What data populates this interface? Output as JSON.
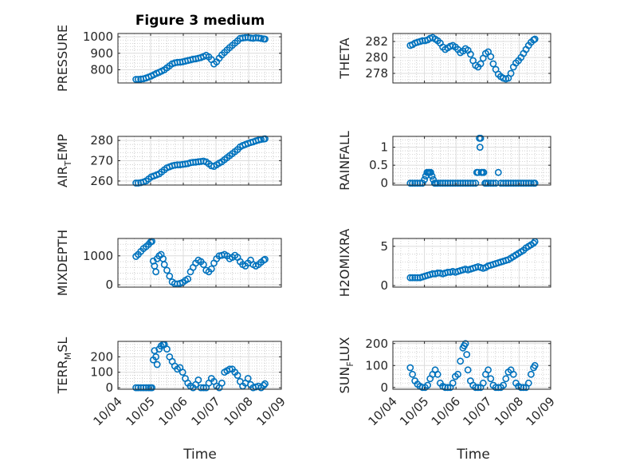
{
  "figure": {
    "title": "Figure 3 medium"
  },
  "chart_data": [
    {
      "type": "scatter",
      "id": "pressure",
      "ylabel": "PRESSURE",
      "ylabel_sub": null,
      "ylim": [
        720,
        1020
      ],
      "yticks": [
        800,
        900,
        1000
      ],
      "xlim": [
        0,
        5
      ],
      "x": [
        0.55,
        0.62,
        0.7,
        0.78,
        0.86,
        0.94,
        1.02,
        1.1,
        1.18,
        1.26,
        1.34,
        1.42,
        1.5,
        1.58,
        1.66,
        1.74,
        1.82,
        1.9,
        1.98,
        2.06,
        2.14,
        2.22,
        2.3,
        2.38,
        2.46,
        2.54,
        2.62,
        2.7,
        2.78,
        2.86,
        2.94,
        3.02,
        3.1,
        3.18,
        3.26,
        3.34,
        3.42,
        3.5,
        3.58,
        3.66,
        3.74,
        3.82,
        3.9,
        3.98,
        4.06,
        4.14,
        4.22,
        4.3,
        4.38,
        4.46,
        4.5
      ],
      "values": [
        742,
        742,
        743,
        745,
        750,
        756,
        762,
        770,
        778,
        785,
        792,
        800,
        812,
        824,
        836,
        842,
        845,
        846,
        848,
        852,
        856,
        860,
        864,
        866,
        870,
        874,
        880,
        888,
        878,
        862,
        835,
        848,
        870,
        890,
        905,
        920,
        935,
        948,
        962,
        975,
        990,
        993,
        995,
        996,
        993,
        991,
        994,
        993,
        990,
        987,
        986
      ]
    },
    {
      "type": "scatter",
      "id": "theta",
      "ylabel": "THETA",
      "ylabel_sub": null,
      "ylim": [
        276.8,
        283.0
      ],
      "yticks": [
        278,
        280,
        282
      ],
      "xlim": [
        0,
        5
      ],
      "x": [
        0.55,
        0.62,
        0.7,
        0.78,
        0.86,
        0.94,
        1.02,
        1.1,
        1.18,
        1.26,
        1.34,
        1.42,
        1.5,
        1.58,
        1.66,
        1.74,
        1.82,
        1.9,
        1.98,
        2.06,
        2.14,
        2.22,
        2.3,
        2.38,
        2.46,
        2.54,
        2.62,
        2.7,
        2.78,
        2.86,
        2.94,
        3.02,
        3.1,
        3.18,
        3.26,
        3.34,
        3.42,
        3.5,
        3.58,
        3.66,
        3.74,
        3.82,
        3.9,
        3.98,
        4.06,
        4.14,
        4.22,
        4.3,
        4.38,
        4.46,
        4.5
      ],
      "values": [
        281.5,
        281.6,
        281.8,
        281.9,
        282.0,
        282.1,
        282.1,
        282.2,
        282.4,
        282.5,
        282.3,
        282.1,
        281.8,
        281.3,
        281.0,
        281.2,
        281.4,
        281.5,
        281.3,
        281.0,
        280.6,
        280.8,
        281.1,
        280.9,
        280.4,
        279.6,
        279.0,
        278.8,
        279.2,
        279.9,
        280.5,
        280.7,
        280.1,
        279.2,
        278.5,
        277.9,
        277.6,
        277.4,
        277.3,
        277.4,
        278.0,
        278.8,
        279.3,
        279.6,
        280.0,
        280.5,
        281.0,
        281.5,
        281.9,
        282.2,
        282.3
      ]
    },
    {
      "type": "scatter",
      "id": "air-temp",
      "ylabel": "AIR",
      "ylabel_sub": "T",
      "ylabel_tail": "EMP",
      "ylim": [
        258,
        282
      ],
      "yticks": [
        260,
        270,
        280
      ],
      "xlim": [
        0,
        5
      ],
      "x": [
        0.55,
        0.62,
        0.7,
        0.78,
        0.86,
        0.94,
        1.02,
        1.1,
        1.18,
        1.26,
        1.34,
        1.42,
        1.5,
        1.58,
        1.66,
        1.74,
        1.82,
        1.9,
        1.98,
        2.06,
        2.14,
        2.22,
        2.3,
        2.38,
        2.46,
        2.54,
        2.62,
        2.7,
        2.78,
        2.86,
        2.94,
        3.02,
        3.1,
        3.18,
        3.26,
        3.34,
        3.42,
        3.5,
        3.58,
        3.66,
        3.74,
        3.82,
        3.9,
        3.98,
        4.06,
        4.14,
        4.22,
        4.3,
        4.38,
        4.46,
        4.5
      ],
      "values": [
        259.0,
        259.0,
        259.2,
        259.5,
        260.0,
        261.0,
        262.0,
        262.5,
        263.0,
        263.5,
        264.5,
        265.5,
        266.5,
        267.0,
        267.5,
        267.8,
        268.0,
        268.0,
        268.2,
        268.4,
        268.6,
        269.0,
        269.2,
        269.3,
        269.5,
        269.6,
        269.8,
        269.4,
        268.5,
        267.5,
        267.2,
        268.0,
        268.8,
        269.5,
        270.5,
        271.5,
        272.5,
        273.5,
        274.5,
        275.5,
        276.8,
        277.5,
        278.0,
        278.5,
        279.0,
        279.3,
        279.8,
        280.2,
        280.5,
        280.7,
        280.8
      ]
    },
    {
      "type": "scatter",
      "id": "rainfall",
      "ylabel": "RAINFALL",
      "ylabel_sub": null,
      "ylim": [
        -0.05,
        1.3
      ],
      "yticks": [
        0,
        0.5,
        1
      ],
      "ytick_labels": [
        "0",
        "0.5",
        "1"
      ],
      "xlim": [
        0,
        5
      ],
      "x": [
        0.55,
        0.62,
        0.7,
        0.78,
        0.86,
        0.94,
        1.0,
        1.04,
        1.08,
        1.12,
        1.16,
        1.2,
        1.24,
        1.28,
        1.32,
        1.36,
        1.42,
        1.5,
        1.58,
        1.66,
        1.74,
        1.82,
        1.9,
        1.98,
        2.06,
        2.14,
        2.22,
        2.3,
        2.38,
        2.46,
        2.54,
        2.62,
        2.66,
        2.7,
        2.74,
        2.76,
        2.78,
        2.8,
        2.84,
        2.88,
        2.92,
        2.96,
        3.02,
        3.1,
        3.18,
        3.26,
        3.34,
        3.42,
        3.5,
        3.58,
        3.66,
        3.74,
        3.82,
        3.9,
        3.98,
        4.06,
        4.14,
        4.22,
        4.3,
        4.38,
        4.46,
        4.5
      ],
      "values": [
        0,
        0,
        0,
        0,
        0,
        0,
        0.1,
        0.2,
        0.3,
        0.3,
        0.3,
        0.3,
        0.2,
        0.1,
        0,
        0,
        0,
        0,
        0,
        0,
        0,
        0,
        0,
        0,
        0,
        0,
        0,
        0,
        0,
        0,
        0,
        0,
        0.3,
        0.3,
        1.25,
        1.0,
        1.25,
        0.3,
        0.3,
        0.3,
        0,
        0,
        0,
        0,
        0,
        0,
        0.3,
        0,
        0,
        0,
        0,
        0,
        0,
        0,
        0,
        0,
        0,
        0,
        0,
        0,
        0,
        0
      ]
    },
    {
      "type": "scatter",
      "id": "mixdepth",
      "ylabel": "MIXDEPTH",
      "ylabel_sub": null,
      "ylim": [
        -80,
        1600
      ],
      "yticks": [
        0,
        1000
      ],
      "xlim": [
        0,
        5
      ],
      "x": [
        0.55,
        0.62,
        0.7,
        0.78,
        0.86,
        0.94,
        1.0,
        1.04,
        1.08,
        1.12,
        1.16,
        1.2,
        1.26,
        1.32,
        1.38,
        1.42,
        1.5,
        1.58,
        1.66,
        1.74,
        1.82,
        1.9,
        1.98,
        2.06,
        2.14,
        2.22,
        2.3,
        2.38,
        2.46,
        2.54,
        2.62,
        2.7,
        2.78,
        2.86,
        2.94,
        3.02,
        3.1,
        3.18,
        3.26,
        3.34,
        3.42,
        3.5,
        3.58,
        3.66,
        3.74,
        3.82,
        3.9,
        3.98,
        4.06,
        4.14,
        4.22,
        4.3,
        4.38,
        4.46,
        4.5
      ],
      "values": [
        980,
        1050,
        1150,
        1250,
        1320,
        1400,
        1480,
        1500,
        820,
        650,
        450,
        900,
        1000,
        1050,
        900,
        700,
        500,
        300,
        100,
        40,
        30,
        50,
        80,
        150,
        200,
        450,
        600,
        750,
        850,
        800,
        700,
        500,
        450,
        550,
        750,
        900,
        1000,
        1020,
        1050,
        1000,
        900,
        950,
        1020,
        950,
        800,
        700,
        650,
        750,
        850,
        700,
        650,
        700,
        780,
        850,
        880
      ]
    },
    {
      "type": "scatter",
      "id": "h2omixra",
      "ylabel": "H2OMIXRA",
      "ylabel_sub": null,
      "ylim": [
        -0.2,
        6.0
      ],
      "yticks": [
        0,
        5
      ],
      "xlim": [
        0,
        5
      ],
      "x": [
        0.55,
        0.62,
        0.7,
        0.78,
        0.86,
        0.94,
        1.02,
        1.1,
        1.18,
        1.26,
        1.34,
        1.42,
        1.5,
        1.58,
        1.66,
        1.74,
        1.82,
        1.9,
        1.98,
        2.06,
        2.14,
        2.22,
        2.3,
        2.38,
        2.46,
        2.54,
        2.62,
        2.7,
        2.78,
        2.86,
        2.94,
        3.02,
        3.1,
        3.18,
        3.26,
        3.34,
        3.42,
        3.5,
        3.58,
        3.66,
        3.74,
        3.82,
        3.9,
        3.98,
        4.06,
        4.14,
        4.22,
        4.3,
        4.38,
        4.46,
        4.5
      ],
      "values": [
        1.0,
        1.0,
        1.0,
        1.0,
        1.0,
        1.1,
        1.2,
        1.3,
        1.4,
        1.5,
        1.5,
        1.6,
        1.6,
        1.5,
        1.6,
        1.7,
        1.7,
        1.8,
        1.7,
        1.8,
        1.9,
        2.0,
        2.1,
        2.0,
        2.1,
        2.2,
        2.3,
        2.4,
        2.3,
        2.2,
        2.3,
        2.5,
        2.6,
        2.7,
        2.8,
        2.9,
        3.0,
        3.1,
        3.2,
        3.3,
        3.5,
        3.7,
        3.9,
        4.1,
        4.3,
        4.5,
        4.8,
        5.0,
        5.2,
        5.4,
        5.6
      ]
    },
    {
      "type": "scatter",
      "id": "terr-msl",
      "ylabel": "TERR",
      "ylabel_sub": "M",
      "ylabel_tail": "SL",
      "ylim": [
        -10,
        300
      ],
      "yticks": [
        0,
        100,
        200
      ],
      "xlim": [
        0,
        5
      ],
      "x": [
        0.55,
        0.62,
        0.7,
        0.78,
        0.86,
        0.94,
        1.0,
        1.04,
        1.08,
        1.12,
        1.16,
        1.2,
        1.26,
        1.32,
        1.38,
        1.42,
        1.5,
        1.58,
        1.66,
        1.74,
        1.82,
        1.9,
        1.98,
        2.06,
        2.14,
        2.22,
        2.3,
        2.38,
        2.46,
        2.54,
        2.62,
        2.7,
        2.78,
        2.86,
        2.94,
        3.02,
        3.1,
        3.18,
        3.26,
        3.34,
        3.42,
        3.5,
        3.58,
        3.66,
        3.74,
        3.82,
        3.9,
        3.98,
        4.06,
        4.14,
        4.22,
        4.3,
        4.38,
        4.46,
        4.5
      ],
      "values": [
        0,
        0,
        0,
        0,
        0,
        0,
        0,
        0,
        180,
        240,
        200,
        150,
        250,
        270,
        280,
        280,
        250,
        200,
        170,
        140,
        120,
        130,
        100,
        60,
        30,
        10,
        0,
        20,
        50,
        0,
        0,
        0,
        30,
        60,
        40,
        10,
        0,
        30,
        100,
        110,
        120,
        120,
        100,
        80,
        40,
        10,
        30,
        60,
        20,
        0,
        5,
        10,
        0,
        15,
        25
      ]
    },
    {
      "type": "scatter",
      "id": "sun-flux",
      "ylabel": "SUN",
      "ylabel_sub": "F",
      "ylabel_tail": "LUX",
      "ylim": [
        -8,
        210
      ],
      "yticks": [
        0,
        100,
        200
      ],
      "xlim": [
        0,
        5
      ],
      "x": [
        0.55,
        0.62,
        0.7,
        0.78,
        0.86,
        0.94,
        1.02,
        1.1,
        1.18,
        1.26,
        1.34,
        1.42,
        1.5,
        1.58,
        1.66,
        1.74,
        1.82,
        1.9,
        1.98,
        2.06,
        2.14,
        2.22,
        2.26,
        2.3,
        2.34,
        2.38,
        2.46,
        2.54,
        2.62,
        2.7,
        2.78,
        2.86,
        2.94,
        3.02,
        3.1,
        3.18,
        3.26,
        3.34,
        3.42,
        3.5,
        3.58,
        3.66,
        3.74,
        3.82,
        3.9,
        3.98,
        4.06,
        4.14,
        4.22,
        4.3,
        4.38,
        4.46,
        4.5
      ],
      "values": [
        90,
        60,
        30,
        15,
        5,
        0,
        0,
        10,
        40,
        60,
        80,
        60,
        20,
        5,
        0,
        0,
        0,
        20,
        50,
        60,
        120,
        180,
        190,
        200,
        150,
        80,
        30,
        10,
        0,
        0,
        0,
        20,
        60,
        80,
        40,
        10,
        0,
        0,
        0,
        10,
        40,
        70,
        80,
        60,
        20,
        5,
        0,
        0,
        0,
        20,
        60,
        90,
        100
      ]
    }
  ],
  "x_axis": {
    "label": "Time",
    "ticks": [
      0,
      1,
      2,
      3,
      4,
      5
    ],
    "tick_labels": [
      "10/04",
      "10/05",
      "10/06",
      "10/07",
      "10/08",
      "10/09"
    ]
  },
  "colors": {
    "marker": "#0072BD",
    "axis": "#262626"
  }
}
